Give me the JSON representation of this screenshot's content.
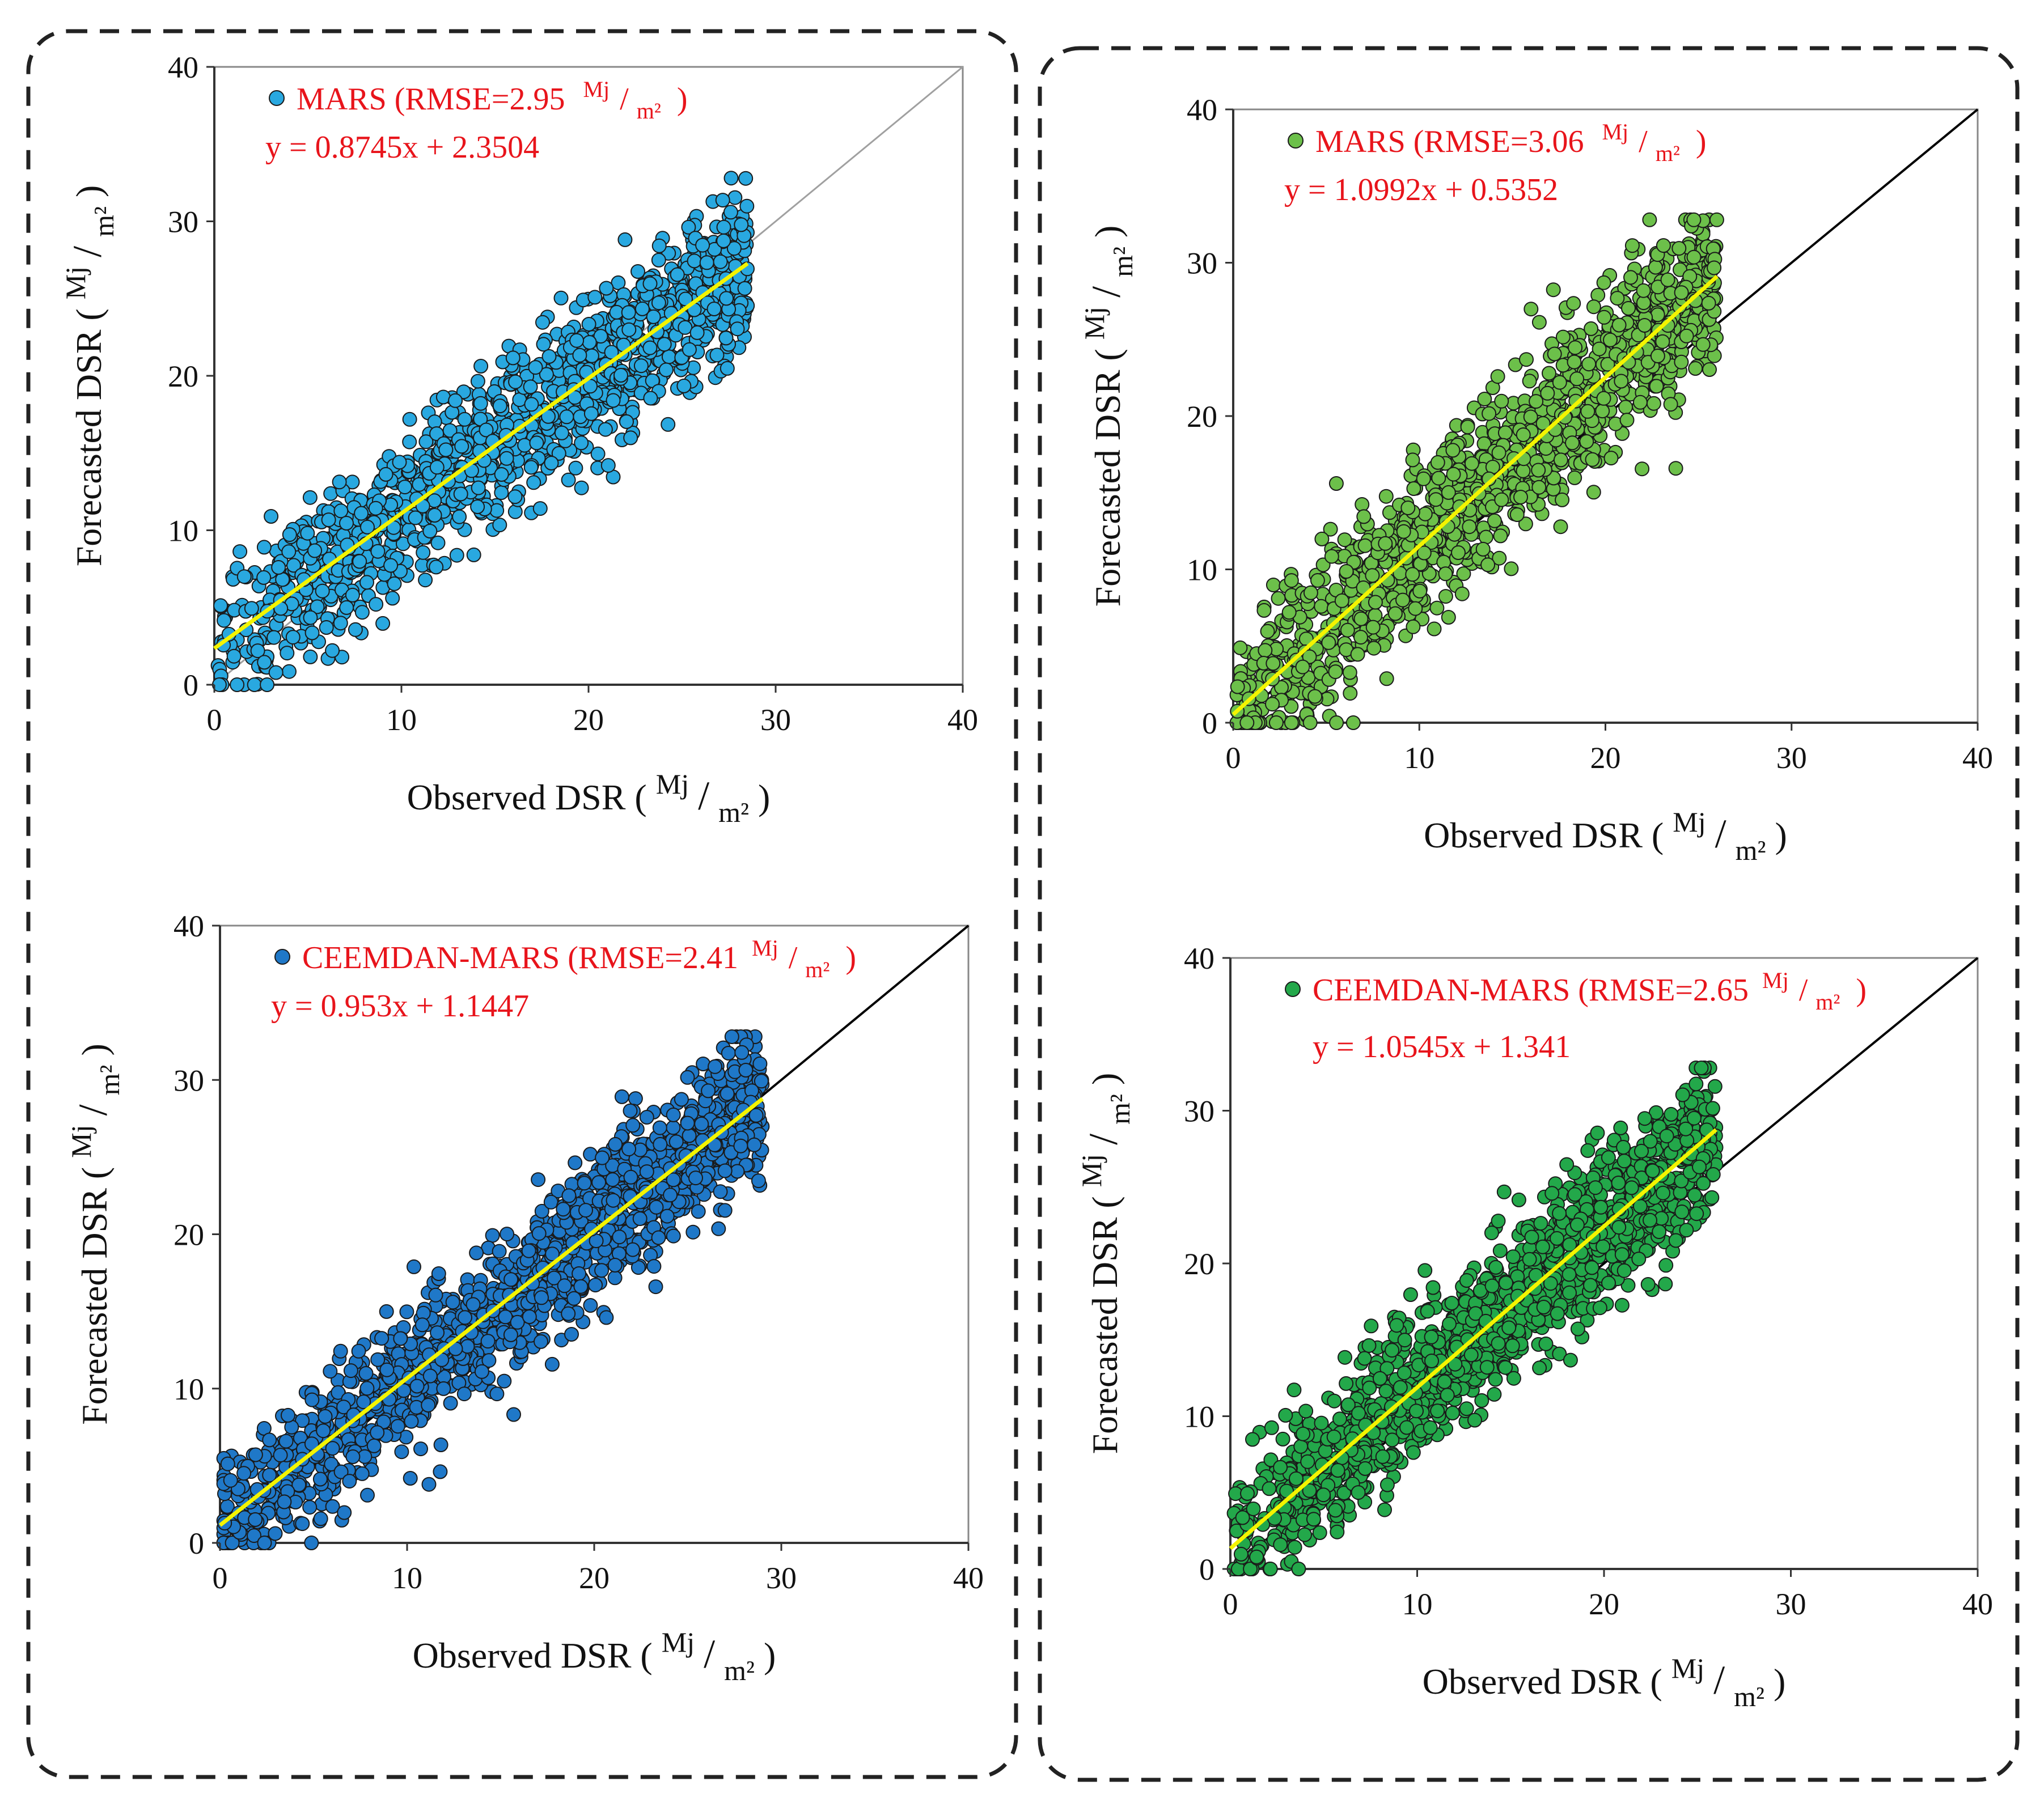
{
  "figure": {
    "axis_x_title": "Observed DSR",
    "axis_y_title": "Forecasted DSR",
    "unit_numerator": "Mj",
    "unit_denominator": "m²",
    "legend_unit_numerator": "Mj",
    "legend_unit_denominator": "m²"
  },
  "chart_data": [
    {
      "type": "scatter",
      "panel": "top-left",
      "series_name": "MARS",
      "rmse_label": "MARS (RMSE=2.95",
      "equation": "y = 0.8745x + 2.3504",
      "slope": 0.8745,
      "intercept": 2.3504,
      "x_range_observed": [
        0,
        28.5
      ],
      "noise_sd": 2.6,
      "point_count": 1300,
      "xlim": [
        0,
        40
      ],
      "ylim": [
        0,
        40
      ],
      "xticks": [
        "0",
        "10",
        "20",
        "30",
        "40"
      ],
      "yticks": [
        "0",
        "10",
        "20",
        "30",
        "40"
      ],
      "identity_line": true,
      "xlabel": "Observed DSR (Mj/m²)",
      "ylabel": "Forecasted DSR (Mj/m²)",
      "legend_position": "top-left"
    },
    {
      "type": "scatter",
      "panel": "top-right",
      "series_name": "MARS",
      "rmse_label": "MARS (RMSE=3.06",
      "equation": "y = 1.0992x + 0.5352",
      "slope": 1.0992,
      "intercept": 0.5352,
      "x_range_observed": [
        0,
        26
      ],
      "noise_sd": 2.8,
      "point_count": 1300,
      "xlim": [
        0,
        40
      ],
      "ylim": [
        0,
        40
      ],
      "xticks": [
        "0",
        "10",
        "20",
        "30",
        "40"
      ],
      "yticks": [
        "0",
        "10",
        "20",
        "30",
        "40"
      ],
      "identity_line": true,
      "xlabel": "Observed DSR (Mj/m²)",
      "ylabel": "Forecasted DSR (Mj/m²)",
      "legend_position": "top-left"
    },
    {
      "type": "scatter",
      "panel": "bottom-left",
      "series_name": "CEEMDAN-MARS",
      "rmse_label": "CEEMDAN-MARS (RMSE=2.41",
      "equation": "y = 0.953x + 1.1447",
      "slope": 0.953,
      "intercept": 1.1447,
      "x_range_observed": [
        0,
        29
      ],
      "noise_sd": 2.3,
      "point_count": 1500,
      "xlim": [
        0,
        40
      ],
      "ylim": [
        0,
        40
      ],
      "xticks": [
        "0",
        "10",
        "20",
        "30",
        "40"
      ],
      "yticks": [
        "0",
        "10",
        "20",
        "30",
        "40"
      ],
      "identity_line": true,
      "xlabel": "Observed DSR (Mj/m²)",
      "ylabel": "Forecasted DSR (Mj/m²)",
      "legend_position": "top-left"
    },
    {
      "type": "scatter",
      "panel": "bottom-right",
      "series_name": "CEEMDAN-MARS",
      "rmse_label": "CEEMDAN-MARS (RMSE=2.65",
      "equation": "y = 1.0545x + 1.341",
      "slope": 1.0545,
      "intercept": 1.341,
      "x_range_observed": [
        0,
        26
      ],
      "noise_sd": 2.4,
      "point_count": 1500,
      "xlim": [
        0,
        40
      ],
      "ylim": [
        0,
        40
      ],
      "xticks": [
        "0",
        "10",
        "20",
        "30",
        "40"
      ],
      "yticks": [
        "0",
        "10",
        "20",
        "30",
        "40"
      ],
      "identity_line": true,
      "xlabel": "Observed DSR (Mj/m²)",
      "ylabel": "Forecasted DSR (Mj/m²)",
      "legend_position": "top-left"
    }
  ],
  "colors": {
    "marker_top_left": "#29a8e0",
    "marker_top_right": "#6cc04a",
    "marker_bottom_left": "#1f78c8",
    "marker_bottom_right": "#23a84a",
    "marker_edge": "#1a1a1a",
    "fit_line": "#f4f400",
    "identity_top_left": "#a0a0a0",
    "identity_other": "#000000",
    "legend_text": "#e8141b",
    "axis_text": "#111111",
    "frame_dash": "#222222"
  }
}
